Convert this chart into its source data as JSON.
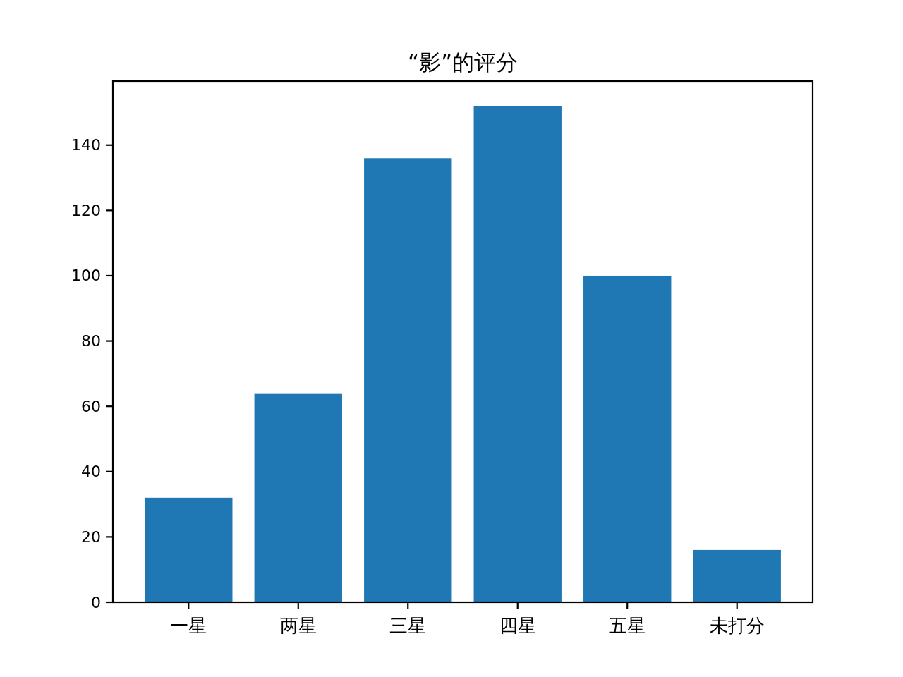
{
  "chart_data": {
    "type": "bar",
    "title": "“影”的评分",
    "categories": [
      "一星",
      "两星",
      "三星",
      "四星",
      "五星",
      "未打分"
    ],
    "values": [
      32,
      64,
      136,
      152,
      100,
      16
    ],
    "color": "#1f77b4",
    "ylim": [
      0,
      159.6
    ],
    "yticks": [
      0,
      20,
      40,
      60,
      80,
      100,
      120,
      140
    ]
  }
}
